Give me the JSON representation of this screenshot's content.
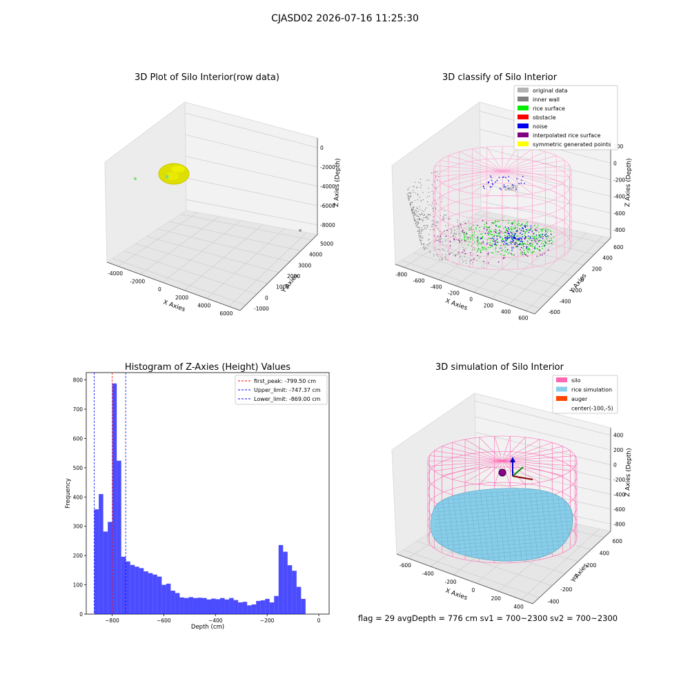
{
  "figure": {
    "suptitle": "CJASD02 2026-07-16 11:25:30",
    "footer": "flag = 29  avgDepth = 776 cm  sv1 = 700~2300  sv2 = 700~2300"
  },
  "panels": {
    "raw": {
      "title": "3D Plot of Silo Interior(row data)",
      "xlabel": "X Axies",
      "ylabel": "Y Axies",
      "zlabel": "Z Axies (Depth)",
      "xticks": [
        "-4000",
        "-2000",
        "0",
        "2000",
        "4000",
        "6000"
      ],
      "yticks": [
        "-1000",
        "0",
        "1000",
        "2000",
        "3000",
        "4000",
        "5000"
      ],
      "zticks": [
        "0",
        "-2000",
        "-4000",
        "-6000",
        "-8000"
      ],
      "colors": {
        "points": "#e6e600",
        "outlier_green": "#7fdc7f",
        "outlier_grey": "#999999"
      }
    },
    "classify": {
      "title": "3D classify of Silo Interior",
      "xlabel": "X Axies",
      "ylabel": "Y Axies",
      "zlabel": "Z Axies (Depth)",
      "xticks": [
        "-800",
        "-600",
        "-400",
        "-200",
        "0",
        "200",
        "400",
        "600"
      ],
      "yticks": [
        "-600",
        "-400",
        "-200",
        "0",
        "200",
        "400",
        "600"
      ],
      "zticks": [
        "200",
        "0",
        "-200",
        "-400",
        "-600",
        "-800"
      ],
      "legend": [
        {
          "label": "original data",
          "color": "#b3b3b3"
        },
        {
          "label": "inner wall",
          "color": "#808080"
        },
        {
          "label": "rice surface",
          "color": "#00ee00"
        },
        {
          "label": "obstacle",
          "color": "#ff0000"
        },
        {
          "label": "noise",
          "color": "#0000ee"
        },
        {
          "label": "interpolated rice surface",
          "color": "#800080"
        },
        {
          "label": "symmetric generated points",
          "color": "#ffff00"
        }
      ],
      "colors": {
        "wireframe": "#ff9fcf"
      }
    },
    "histogram": {
      "title": "Histogram of Z-Axies (Height) Values",
      "xlabel": "Depth (cm)",
      "ylabel": "Frequency",
      "legend": [
        {
          "label": "first_peak: -799.50 cm",
          "color": "#ff0000"
        },
        {
          "label": "Upper_limit: -747.37 cm",
          "color": "#0000ff"
        },
        {
          "label": "Lower_limit: -869.00 cm",
          "color": "#0000ff"
        }
      ]
    },
    "simulation": {
      "title": "3D simulation of Silo Interior",
      "xlabel": "X Axies",
      "ylabel": "Y Axies",
      "zlabel": "Z Axies (Depth)",
      "xticks": [
        "-600",
        "-400",
        "-200",
        "0",
        "200",
        "400"
      ],
      "yticks": [
        "-400",
        "-200",
        "0",
        "200",
        "400",
        "600"
      ],
      "zticks": [
        "400",
        "200",
        "0",
        "-200",
        "-400",
        "-600",
        "-800"
      ],
      "legend": [
        {
          "label": "silo",
          "color": "#ff69b4"
        },
        {
          "label": "rice simulation",
          "color": "#87ceeb"
        },
        {
          "label": "auger",
          "color": "#ff4500"
        },
        {
          "label": "center(-100,-5)",
          "color": ""
        }
      ]
    }
  },
  "chart_data": {
    "type": "bar",
    "title": "Histogram of Z-Axies (Height) Values",
    "xlabel": "Depth (cm)",
    "ylabel": "Frequency",
    "xlim": [
      -900,
      40
    ],
    "ylim": [
      0,
      825
    ],
    "xticks": [
      -800,
      -600,
      -400,
      -200,
      0
    ],
    "yticks": [
      0,
      100,
      200,
      300,
      400,
      500,
      600,
      700,
      800
    ],
    "bar_color": "#0000ff",
    "bin_start": -869,
    "bin_width": 17.4,
    "values": [
      358,
      410,
      282,
      315,
      788,
      524,
      196,
      180,
      168,
      162,
      157,
      146,
      140,
      135,
      128,
      100,
      104,
      80,
      72,
      57,
      55,
      58,
      55,
      56,
      55,
      50,
      53,
      51,
      55,
      50,
      55,
      48,
      40,
      42,
      30,
      33,
      45,
      47,
      52,
      40,
      62,
      236,
      213,
      167,
      148,
      93,
      52
    ],
    "vlines": [
      {
        "label": "first_peak: -799.50 cm",
        "x": -799.5,
        "color": "#ff0000"
      },
      {
        "label": "Upper_limit: -747.37 cm",
        "x": -747.37,
        "color": "#0000ff"
      },
      {
        "label": "Lower_limit: -869.00 cm",
        "x": -869.0,
        "color": "#0000ff"
      }
    ],
    "legend_position": "upper right"
  }
}
